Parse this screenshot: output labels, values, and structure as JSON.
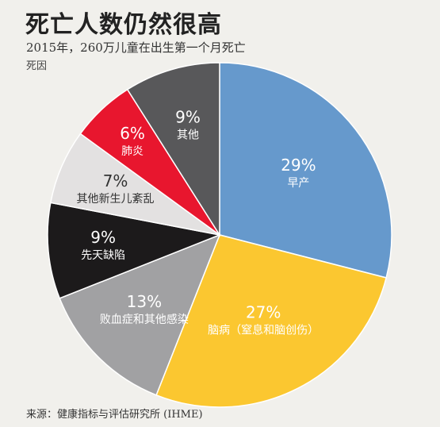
{
  "title": "死亡人数仍然很高",
  "subtitle": "2015年，260万儿童在出生第一个月死亡",
  "unit_label": "死因",
  "source": "来源：健康指标与评估研究所 (IHME)",
  "chart_data": {
    "type": "pie",
    "title": "死亡人数仍然很高",
    "subtitle": "2015年，260万儿童在出生第一个月死亡",
    "slices": [
      {
        "label": "早产",
        "value": 29,
        "display": "29%",
        "color": "#6699cc",
        "text_color": "#ffffff"
      },
      {
        "label": "脑病（窒息和脑创伤）",
        "value": 27,
        "display": "27%",
        "color": "#fbc730",
        "text_color": "#ffffff"
      },
      {
        "label": "败血症和其他感染",
        "value": 13,
        "display": "13%",
        "color": "#a1a1a3",
        "text_color": "#ffffff"
      },
      {
        "label": "先天缺陷",
        "value": 9,
        "display": "9%",
        "color": "#1c1a1b",
        "text_color": "#ffffff"
      },
      {
        "label": "其他新生儿紊乱",
        "value": 7,
        "display": "7%",
        "color": "#e3e1e1",
        "text_color": "#333333"
      },
      {
        "label": "肺炎",
        "value": 6,
        "display": "6%",
        "color": "#e8162e",
        "text_color": "#ffffff"
      },
      {
        "label": "其他",
        "value": 9,
        "display": "9%",
        "color": "#58585a",
        "text_color": "#ffffff"
      }
    ]
  }
}
